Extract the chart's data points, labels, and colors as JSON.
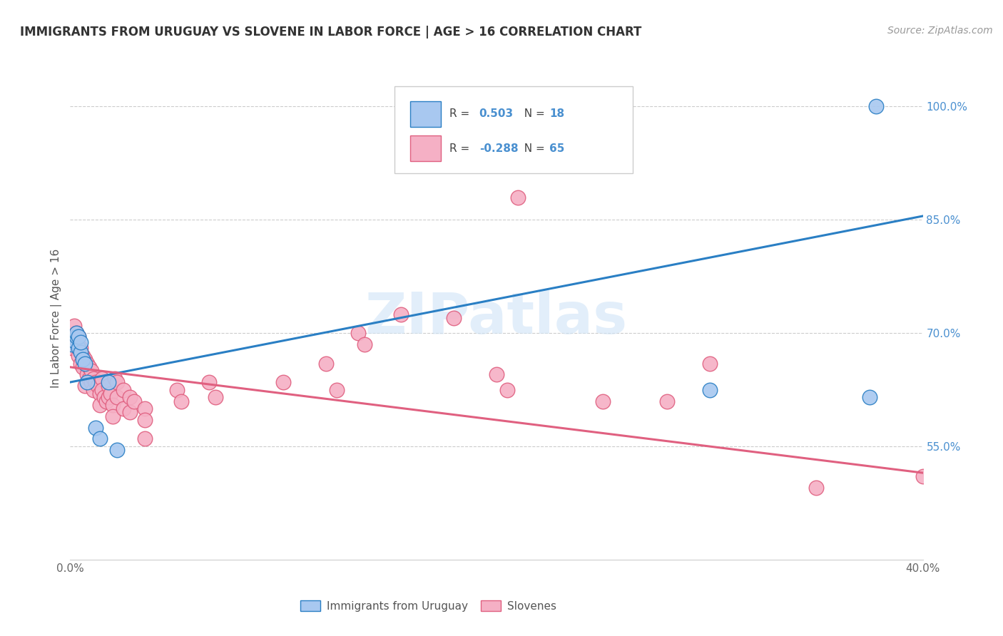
{
  "title": "IMMIGRANTS FROM URUGUAY VS SLOVENE IN LABOR FORCE | AGE > 16 CORRELATION CHART",
  "source": "Source: ZipAtlas.com",
  "ylabel": "In Labor Force | Age > 16",
  "xlim": [
    0.0,
    0.4
  ],
  "ylim": [
    0.4,
    1.04
  ],
  "blue_color": "#a8c8f0",
  "pink_color": "#f5b0c5",
  "blue_line_color": "#2a7fc4",
  "pink_line_color": "#e06080",
  "blue_text_color": "#4a90d0",
  "pink_text_color": "#e06080",
  "watermark": "ZIPatlas",
  "blue_line": [
    0.0,
    0.635,
    0.4,
    0.855
  ],
  "pink_line": [
    0.0,
    0.655,
    0.4,
    0.515
  ],
  "ytick_positions": [
    0.55,
    0.7,
    0.85,
    1.0
  ],
  "ytick_labels": [
    "55.0%",
    "70.0%",
    "85.0%",
    "100.0%"
  ],
  "uruguay_points": [
    [
      0.001,
      0.685
    ],
    [
      0.002,
      0.69
    ],
    [
      0.003,
      0.695
    ],
    [
      0.003,
      0.7
    ],
    [
      0.004,
      0.68
    ],
    [
      0.004,
      0.695
    ],
    [
      0.005,
      0.675
    ],
    [
      0.005,
      0.688
    ],
    [
      0.006,
      0.665
    ],
    [
      0.007,
      0.66
    ],
    [
      0.008,
      0.635
    ],
    [
      0.012,
      0.575
    ],
    [
      0.014,
      0.56
    ],
    [
      0.018,
      0.635
    ],
    [
      0.022,
      0.545
    ],
    [
      0.3,
      0.625
    ],
    [
      0.375,
      0.615
    ],
    [
      0.378,
      1.0
    ]
  ],
  "slovene_points": [
    [
      0.001,
      0.68
    ],
    [
      0.002,
      0.71
    ],
    [
      0.002,
      0.695
    ],
    [
      0.003,
      0.7
    ],
    [
      0.003,
      0.685
    ],
    [
      0.004,
      0.695
    ],
    [
      0.004,
      0.67
    ],
    [
      0.005,
      0.68
    ],
    [
      0.005,
      0.66
    ],
    [
      0.006,
      0.67
    ],
    [
      0.006,
      0.655
    ],
    [
      0.007,
      0.665
    ],
    [
      0.007,
      0.63
    ],
    [
      0.008,
      0.66
    ],
    [
      0.008,
      0.645
    ],
    [
      0.009,
      0.655
    ],
    [
      0.009,
      0.64
    ],
    [
      0.01,
      0.65
    ],
    [
      0.01,
      0.635
    ],
    [
      0.011,
      0.64
    ],
    [
      0.011,
      0.625
    ],
    [
      0.012,
      0.635
    ],
    [
      0.013,
      0.63
    ],
    [
      0.014,
      0.62
    ],
    [
      0.014,
      0.605
    ],
    [
      0.015,
      0.64
    ],
    [
      0.015,
      0.625
    ],
    [
      0.016,
      0.615
    ],
    [
      0.017,
      0.61
    ],
    [
      0.018,
      0.63
    ],
    [
      0.018,
      0.615
    ],
    [
      0.019,
      0.62
    ],
    [
      0.02,
      0.605
    ],
    [
      0.02,
      0.59
    ],
    [
      0.021,
      0.64
    ],
    [
      0.022,
      0.635
    ],
    [
      0.022,
      0.615
    ],
    [
      0.025,
      0.625
    ],
    [
      0.025,
      0.6
    ],
    [
      0.028,
      0.615
    ],
    [
      0.028,
      0.595
    ],
    [
      0.03,
      0.61
    ],
    [
      0.035,
      0.6
    ],
    [
      0.035,
      0.585
    ],
    [
      0.035,
      0.56
    ],
    [
      0.05,
      0.625
    ],
    [
      0.052,
      0.61
    ],
    [
      0.065,
      0.635
    ],
    [
      0.068,
      0.615
    ],
    [
      0.1,
      0.635
    ],
    [
      0.12,
      0.66
    ],
    [
      0.125,
      0.625
    ],
    [
      0.135,
      0.7
    ],
    [
      0.138,
      0.685
    ],
    [
      0.155,
      0.725
    ],
    [
      0.18,
      0.72
    ],
    [
      0.2,
      0.645
    ],
    [
      0.205,
      0.625
    ],
    [
      0.21,
      0.88
    ],
    [
      0.25,
      0.61
    ],
    [
      0.28,
      0.61
    ],
    [
      0.3,
      0.66
    ],
    [
      0.35,
      0.495
    ],
    [
      0.4,
      0.51
    ]
  ]
}
